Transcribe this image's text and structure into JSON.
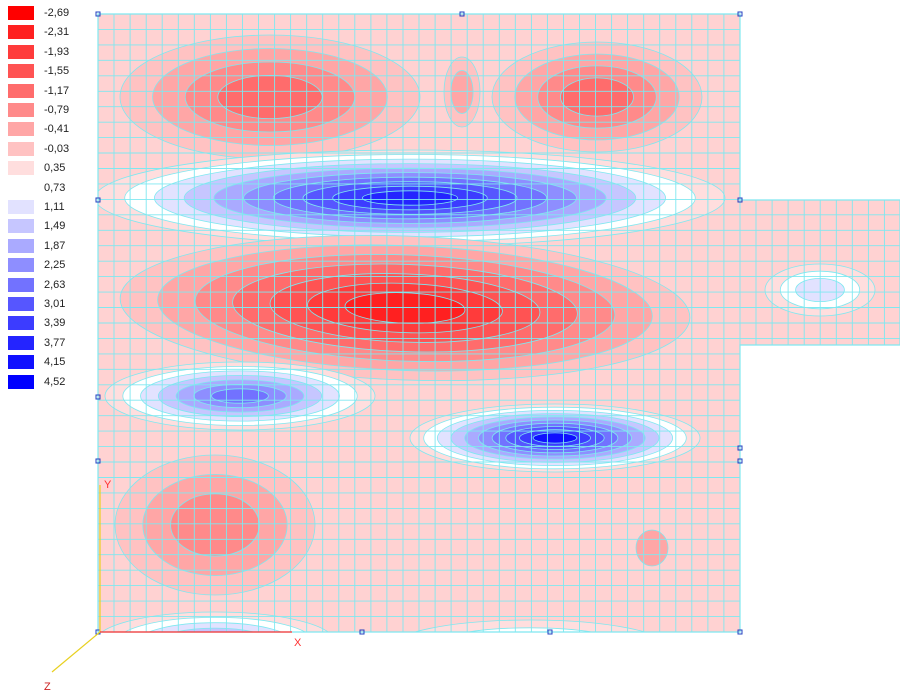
{
  "legend": {
    "items": [
      {
        "label": "-2,69",
        "color": "#ff0000"
      },
      {
        "label": "-2,31",
        "color": "#ff2020"
      },
      {
        "label": "-1,93",
        "color": "#ff3b3b"
      },
      {
        "label": "-1,55",
        "color": "#ff5353"
      },
      {
        "label": "-1,17",
        "color": "#ff6c6c"
      },
      {
        "label": "-0,79",
        "color": "#ff8a8a"
      },
      {
        "label": "-0,41",
        "color": "#ffa6a6"
      },
      {
        "label": "-0,03",
        "color": "#ffc2c2"
      },
      {
        "label": "0,35",
        "color": "#ffdede"
      },
      {
        "label": "0,73",
        "color": "#ffffff"
      },
      {
        "label": "1,11",
        "color": "#e2e2ff"
      },
      {
        "label": "1,49",
        "color": "#c6c6ff"
      },
      {
        "label": "1,87",
        "color": "#aaaaff"
      },
      {
        "label": "2,25",
        "color": "#8e8eff"
      },
      {
        "label": "2,63",
        "color": "#7272ff"
      },
      {
        "label": "3,01",
        "color": "#5656ff"
      },
      {
        "label": "3,39",
        "color": "#3c3cff"
      },
      {
        "label": "3,77",
        "color": "#2424ff"
      },
      {
        "label": "4,15",
        "color": "#1010ff"
      },
      {
        "label": "4,52",
        "color": "#0000ff"
      }
    ]
  },
  "axes": {
    "x_label": "X",
    "y_label": "Y",
    "z_label": "Z"
  },
  "colors": {
    "mesh": "#7fe8f0",
    "base_fill": "#ffd2d2",
    "axis_x": "#ff3030",
    "axis_y": "#e8d020",
    "axis_z": "#e8d020",
    "node_marker": "#2040c0"
  }
}
